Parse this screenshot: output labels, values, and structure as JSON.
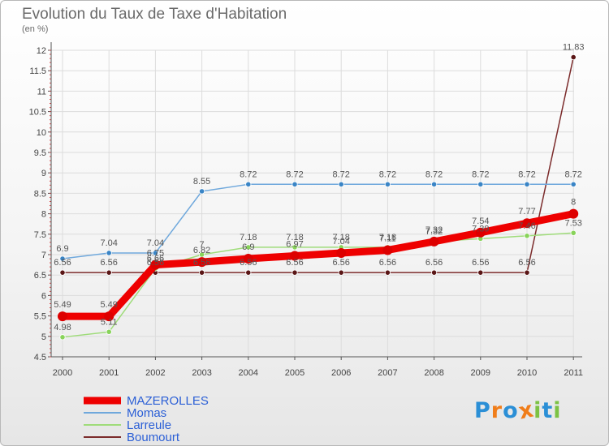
{
  "chart_data": {
    "type": "line",
    "title": "Evolution du Taux de Taxe d'Habitation",
    "subtitle": "(en %)",
    "xlabel": "",
    "ylabel": "",
    "ylim": [
      4.5,
      12
    ],
    "yticks": [
      "4.5",
      "5",
      "5.5",
      "6",
      "6.5",
      "7",
      "7.5",
      "8",
      "8.5",
      "9",
      "9.5",
      "10",
      "10.5",
      "11",
      "11.5",
      "12"
    ],
    "categories": [
      "2000",
      "2001",
      "2002",
      "2003",
      "2004",
      "2005",
      "2006",
      "2007",
      "2008",
      "2009",
      "2010",
      "2011"
    ],
    "grid": true,
    "legend_position": "bottom-left",
    "series": [
      {
        "name": "MAZEROLLES",
        "color": "#ee0000",
        "marker": "#dd0000",
        "values": [
          5.49,
          5.49,
          6.75,
          6.82,
          6.9,
          6.97,
          7.04,
          7.11,
          7.32,
          7.54,
          7.77,
          8
        ],
        "labels": [
          "5.49",
          "5.49",
          "6.75",
          "6.82",
          "6.9",
          "6.97",
          "7.04",
          "7.11",
          "7.32",
          "7.54",
          "7.77",
          "8"
        ]
      },
      {
        "name": "Momas",
        "color": "#6fa8dc",
        "marker": "#3a85c6",
        "values": [
          6.9,
          7.04,
          7.04,
          8.55,
          8.72,
          8.72,
          8.72,
          8.72,
          8.72,
          8.72,
          8.72,
          8.72
        ],
        "labels": [
          "6.9",
          "7.04",
          "7.04",
          "8.55",
          "8.72",
          "8.72",
          "8.72",
          "8.72",
          "8.72",
          "8.72",
          "8.72",
          "8.72"
        ]
      },
      {
        "name": "Larreule",
        "color": "#9fdc7a",
        "marker": "#88d35a",
        "values": [
          4.98,
          5.11,
          6.66,
          7.0,
          7.18,
          7.18,
          7.18,
          7.18,
          7.32,
          7.39,
          7.46,
          7.53
        ],
        "labels": [
          "4.98",
          "5.11",
          "6.66",
          "7",
          "7.18",
          "7.18",
          "7.18",
          "7.18",
          "7.32",
          "7.39",
          "7.46",
          "7.53"
        ]
      },
      {
        "name": "Boumourt",
        "color": "#7b2b2b",
        "marker": "#5a1616",
        "values": [
          6.56,
          6.56,
          6.56,
          6.56,
          6.56,
          6.56,
          6.56,
          6.56,
          6.56,
          6.56,
          6.56,
          11.83
        ],
        "labels": [
          "6.56",
          "6.56",
          "6.56",
          "6.56",
          "6.56",
          "6.56",
          "6.56",
          "6.56",
          "6.56",
          "6.56",
          "6.56",
          "11.83"
        ]
      }
    ]
  },
  "legend": {
    "items": [
      "MAZEROLLES",
      "Momas",
      "Larreule",
      "Boumourt"
    ],
    "colors": [
      "#ee0000",
      "#6fa8dc",
      "#9fdc7a",
      "#7b2b2b"
    ],
    "text_color": "#2b5fd6"
  },
  "logo": {
    "letters": [
      "P",
      "r",
      "o",
      "x",
      "i",
      "t",
      "i"
    ],
    "colors": [
      "#2b8fd6",
      "#f07d1a",
      "#2b8fd6",
      "#f07d1a",
      "#7cc243",
      "#2b8fd6",
      "#7cc243"
    ]
  }
}
